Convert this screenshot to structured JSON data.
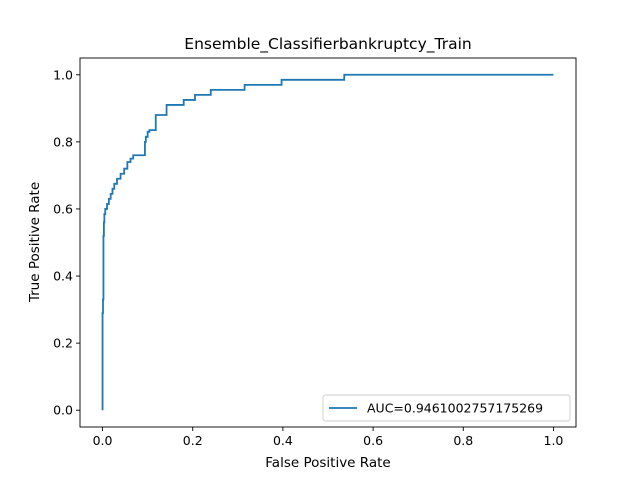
{
  "chart_data": {
    "type": "line",
    "title": "Ensemble_Classifierbankruptcy_Train",
    "xlabel": "False Positive Rate",
    "ylabel": "True Positive Rate",
    "xlim": [
      -0.05,
      1.05
    ],
    "ylim": [
      -0.05,
      1.05
    ],
    "xticks": [
      0.0,
      0.2,
      0.4,
      0.6,
      0.8,
      1.0
    ],
    "xtick_labels": [
      "0.0",
      "0.2",
      "0.4",
      "0.6",
      "0.8",
      "1.0"
    ],
    "yticks": [
      0.0,
      0.2,
      0.4,
      0.6,
      0.8,
      1.0
    ],
    "ytick_labels": [
      "0.0",
      "0.2",
      "0.4",
      "0.6",
      "0.8",
      "1.0"
    ],
    "grid": false,
    "legend_position": "lower-right",
    "series": [
      {
        "name": "AUC=0.9461002757175269",
        "color": "#1f77b4",
        "x": [
          0.0,
          0.0,
          0.001,
          0.001,
          0.002,
          0.002,
          0.003,
          0.003,
          0.004,
          0.004,
          0.006,
          0.006,
          0.01,
          0.01,
          0.014,
          0.014,
          0.018,
          0.018,
          0.022,
          0.022,
          0.026,
          0.026,
          0.032,
          0.032,
          0.04,
          0.04,
          0.048,
          0.048,
          0.055,
          0.055,
          0.062,
          0.062,
          0.068,
          0.068,
          0.076,
          0.076,
          0.094,
          0.094,
          0.096,
          0.096,
          0.1,
          0.1,
          0.104,
          0.104,
          0.118,
          0.118,
          0.142,
          0.142,
          0.18,
          0.18,
          0.205,
          0.205,
          0.24,
          0.24,
          0.315,
          0.315,
          0.397,
          0.397,
          0.536,
          0.536,
          1.0
        ],
        "y": [
          0.0,
          0.29,
          0.29,
          0.33,
          0.33,
          0.52,
          0.52,
          0.56,
          0.56,
          0.585,
          0.585,
          0.6,
          0.6,
          0.615,
          0.615,
          0.63,
          0.63,
          0.645,
          0.645,
          0.66,
          0.66,
          0.675,
          0.675,
          0.69,
          0.69,
          0.705,
          0.705,
          0.72,
          0.72,
          0.74,
          0.74,
          0.75,
          0.75,
          0.76,
          0.76,
          0.76,
          0.76,
          0.8,
          0.8,
          0.815,
          0.815,
          0.83,
          0.83,
          0.835,
          0.835,
          0.88,
          0.88,
          0.91,
          0.91,
          0.925,
          0.925,
          0.94,
          0.94,
          0.955,
          0.955,
          0.97,
          0.97,
          0.985,
          0.985,
          1.0,
          1.0
        ]
      }
    ]
  }
}
